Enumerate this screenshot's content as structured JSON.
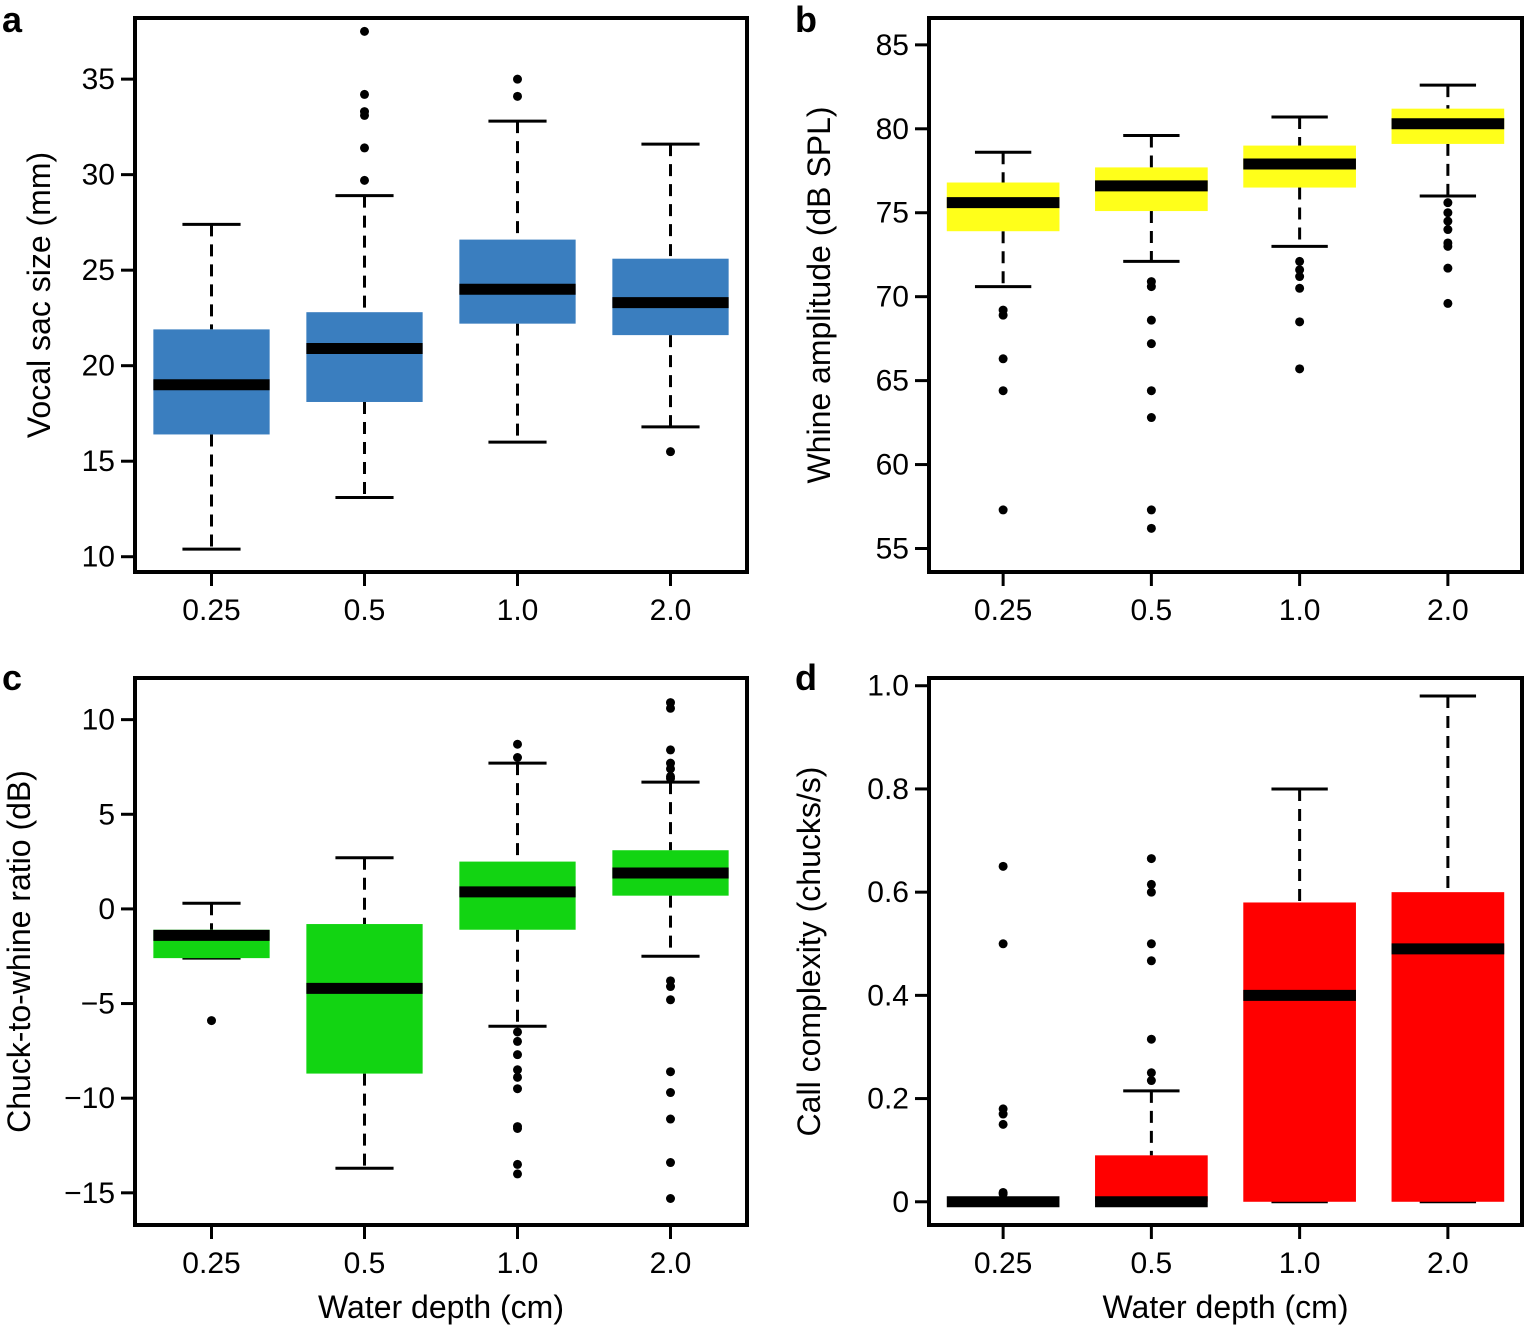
{
  "chart_data": [
    {
      "panel": "a",
      "type": "boxplot",
      "xlabel": "",
      "ylabel": "Vocal sac size (mm)",
      "categories": [
        "0.25",
        "0.5",
        "1.0",
        "2.0"
      ],
      "yticks": [
        10,
        15,
        20,
        25,
        30,
        35
      ],
      "ytick_labels": [
        "10",
        "15",
        "20",
        "25",
        "30",
        "35"
      ],
      "ylim": [
        9.2,
        38.2
      ],
      "color": "#3a7ebf",
      "boxes": [
        {
          "q1": 16.4,
          "median": 19.0,
          "q3": 21.9,
          "whisker_low": 10.4,
          "whisker_high": 27.4,
          "outliers": []
        },
        {
          "q1": 18.1,
          "median": 20.9,
          "q3": 22.8,
          "whisker_low": 13.1,
          "whisker_high": 28.9,
          "outliers": [
            29.7,
            31.4,
            33.1,
            33.3,
            34.2,
            37.5
          ]
        },
        {
          "q1": 22.2,
          "median": 24.0,
          "q3": 26.6,
          "whisker_low": 16.0,
          "whisker_high": 32.8,
          "outliers": [
            34.1,
            35.0
          ]
        },
        {
          "q1": 21.6,
          "median": 23.3,
          "q3": 25.6,
          "whisker_low": 16.8,
          "whisker_high": 31.6,
          "outliers": [
            15.5
          ]
        }
      ]
    },
    {
      "panel": "b",
      "type": "boxplot",
      "xlabel": "",
      "ylabel": "Whine amplitude (dB SPL)",
      "categories": [
        "0.25",
        "0.5",
        "1.0",
        "2.0"
      ],
      "yticks": [
        55,
        60,
        65,
        70,
        75,
        80,
        85
      ],
      "ytick_labels": [
        "55",
        "60",
        "65",
        "70",
        "75",
        "80",
        "85"
      ],
      "ylim": [
        53.6,
        86.6
      ],
      "color": "#ffff1a",
      "boxes": [
        {
          "q1": 73.9,
          "median": 75.6,
          "q3": 76.8,
          "whisker_low": 70.6,
          "whisker_high": 78.6,
          "outliers": [
            69.2,
            68.9,
            66.3,
            64.4,
            57.3
          ]
        },
        {
          "q1": 75.1,
          "median": 76.6,
          "q3": 77.7,
          "whisker_low": 72.1,
          "whisker_high": 79.6,
          "outliers": [
            70.9,
            70.6,
            68.6,
            67.2,
            64.4,
            62.8,
            57.3,
            56.2
          ]
        },
        {
          "q1": 76.5,
          "median": 77.9,
          "q3": 79.0,
          "whisker_low": 73.0,
          "whisker_high": 80.7,
          "outliers": [
            72.1,
            71.6,
            71.2,
            70.5,
            68.5,
            65.7
          ]
        },
        {
          "q1": 79.1,
          "median": 80.3,
          "q3": 81.2,
          "whisker_low": 76.0,
          "whisker_high": 82.6,
          "outliers": [
            75.6,
            75.0,
            74.5,
            74.0,
            73.2,
            73.0,
            71.7,
            69.6
          ]
        }
      ]
    },
    {
      "panel": "c",
      "type": "boxplot",
      "xlabel": "Water depth (cm)",
      "ylabel": "Chuck-to-whine ratio (dB)",
      "categories": [
        "0.25",
        "0.5",
        "1.0",
        "2.0"
      ],
      "yticks": [
        -15,
        -10,
        -5,
        0,
        5,
        10
      ],
      "ytick_labels": [
        "−15",
        "−10",
        "−5",
        "0",
        "5",
        "10"
      ],
      "ylim": [
        -16.7,
        12.2
      ],
      "color": "#12d412",
      "boxes": [
        {
          "q1": -2.6,
          "median": -1.4,
          "q3": -1.1,
          "whisker_low": -2.6,
          "whisker_high": 0.3,
          "outliers": [
            -5.9
          ]
        },
        {
          "q1": -8.7,
          "median": -4.2,
          "q3": -0.8,
          "whisker_low": -13.7,
          "whisker_high": 2.7,
          "outliers": []
        },
        {
          "q1": -1.1,
          "median": 0.9,
          "q3": 2.5,
          "whisker_low": -6.2,
          "whisker_high": 7.7,
          "outliers": [
            8.7,
            8.0,
            -6.5,
            -7.0,
            -7.7,
            -8.5,
            -8.9,
            -9.5,
            -11.5,
            -11.6,
            -13.5,
            -14.0
          ]
        },
        {
          "q1": 0.7,
          "median": 1.9,
          "q3": 3.1,
          "whisker_low": -2.5,
          "whisker_high": 6.7,
          "outliers": [
            10.9,
            10.6,
            8.4,
            7.7,
            7.4,
            7.0,
            6.9,
            -3.8,
            -4.1,
            -4.8,
            -8.6,
            -9.7,
            -11.1,
            -13.4,
            -15.3
          ]
        }
      ]
    },
    {
      "panel": "d",
      "type": "boxplot",
      "xlabel": "Water depth (cm)",
      "ylabel": "Call complexity (chucks/s)",
      "categories": [
        "0.25",
        "0.5",
        "1.0",
        "2.0"
      ],
      "yticks": [
        0,
        0.2,
        0.4,
        0.6,
        0.8,
        1.0
      ],
      "ytick_labels": [
        "0",
        "0.2",
        "0.4",
        "0.6",
        "0.8",
        "1.0"
      ],
      "ylim": [
        -0.045,
        1.015
      ],
      "color": "#ff0000",
      "boxes": [
        {
          "q1": 0.0,
          "median": 0.0,
          "q3": 0.0,
          "whisker_low": 0.0,
          "whisker_high": 0.0,
          "outliers": [
            0.65,
            0.5,
            0.18,
            0.17,
            0.15,
            0.018,
            0.015
          ]
        },
        {
          "q1": 0.0,
          "median": 0.0,
          "q3": 0.09,
          "whisker_low": 0.0,
          "whisker_high": 0.215,
          "outliers": [
            0.665,
            0.615,
            0.6,
            0.5,
            0.467,
            0.315,
            0.25,
            0.235
          ]
        },
        {
          "q1": 0.0,
          "median": 0.4,
          "q3": 0.58,
          "whisker_low": 0.0,
          "whisker_high": 0.8,
          "outliers": []
        },
        {
          "q1": 0.0,
          "median": 0.49,
          "q3": 0.6,
          "whisker_low": 0.0,
          "whisker_high": 0.98,
          "outliers": []
        }
      ]
    }
  ]
}
